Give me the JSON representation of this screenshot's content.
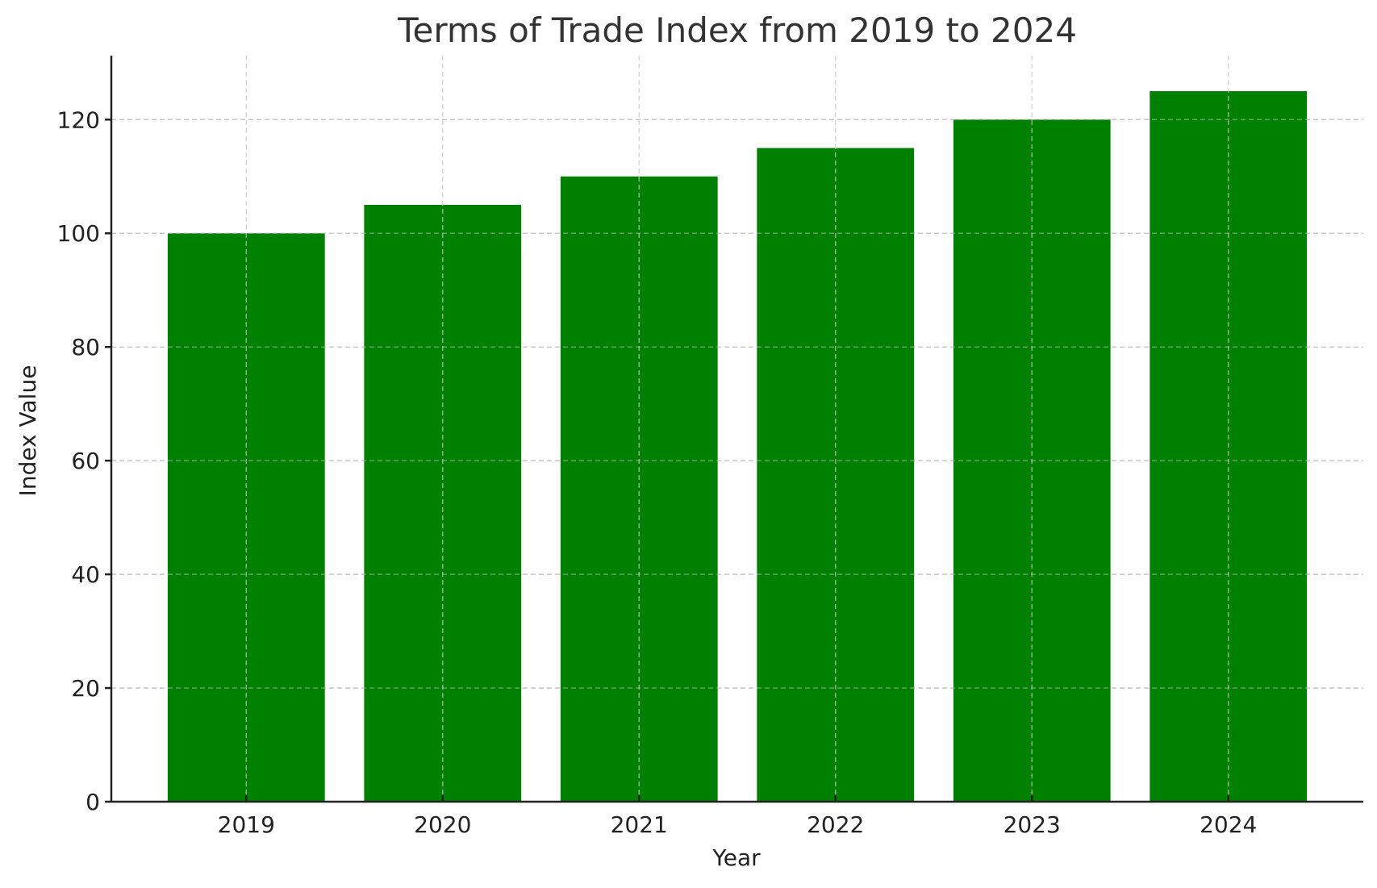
{
  "chart_data": {
    "type": "bar",
    "title": "Terms of Trade Index from 2019 to 2024",
    "xlabel": "Year",
    "ylabel": "Index Value",
    "categories": [
      "2019",
      "2020",
      "2021",
      "2022",
      "2023",
      "2024"
    ],
    "values": [
      100,
      105,
      110,
      115,
      120,
      125
    ],
    "ylim": [
      0,
      131.25
    ],
    "yticks": [
      0,
      20,
      40,
      60,
      80,
      100,
      120
    ],
    "grid": true,
    "grid_style": "dashed",
    "legend": null,
    "colors": {
      "bar": "#008000",
      "grid": "#c8c8c8",
      "axis": "#222222",
      "title": "#333333"
    }
  }
}
